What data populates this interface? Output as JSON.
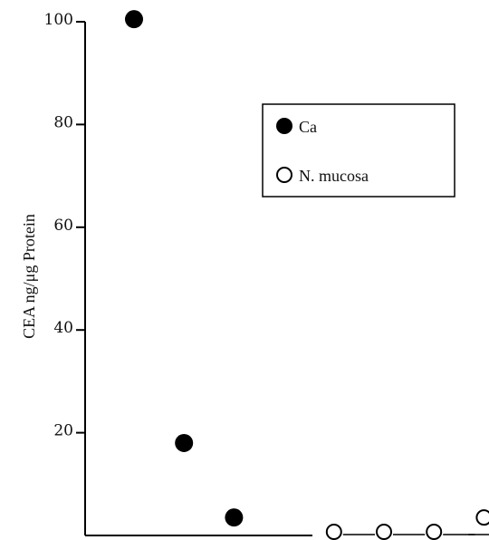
{
  "chart_data": {
    "type": "scatter",
    "title": "",
    "xlabel": "",
    "ylabel": "CEA ng/μg Protein",
    "ylim": [
      0,
      100
    ],
    "yticks": [
      {
        "value": 20,
        "label": "20"
      },
      {
        "value": 40,
        "label": "40"
      },
      {
        "value": 60,
        "label": "60"
      },
      {
        "value": 80,
        "label": "80"
      },
      {
        "value": 100,
        "label": "100"
      }
    ],
    "grid": false,
    "legend_position": "top-right",
    "series": [
      {
        "name": "Ca",
        "marker": "filled-circle",
        "color": "#000000",
        "points": [
          {
            "x": 1,
            "y": 100.5
          },
          {
            "x": 2,
            "y": 18
          },
          {
            "x": 3,
            "y": 3.5
          }
        ]
      },
      {
        "name": "N. mucosa",
        "marker": "open-circle",
        "color": "#000000",
        "connected": true,
        "points": [
          {
            "x": 5,
            "y": 0
          },
          {
            "x": 6,
            "y": 0
          },
          {
            "x": 7,
            "y": 0
          },
          {
            "x": 8,
            "y": 3.5
          }
        ]
      }
    ]
  }
}
